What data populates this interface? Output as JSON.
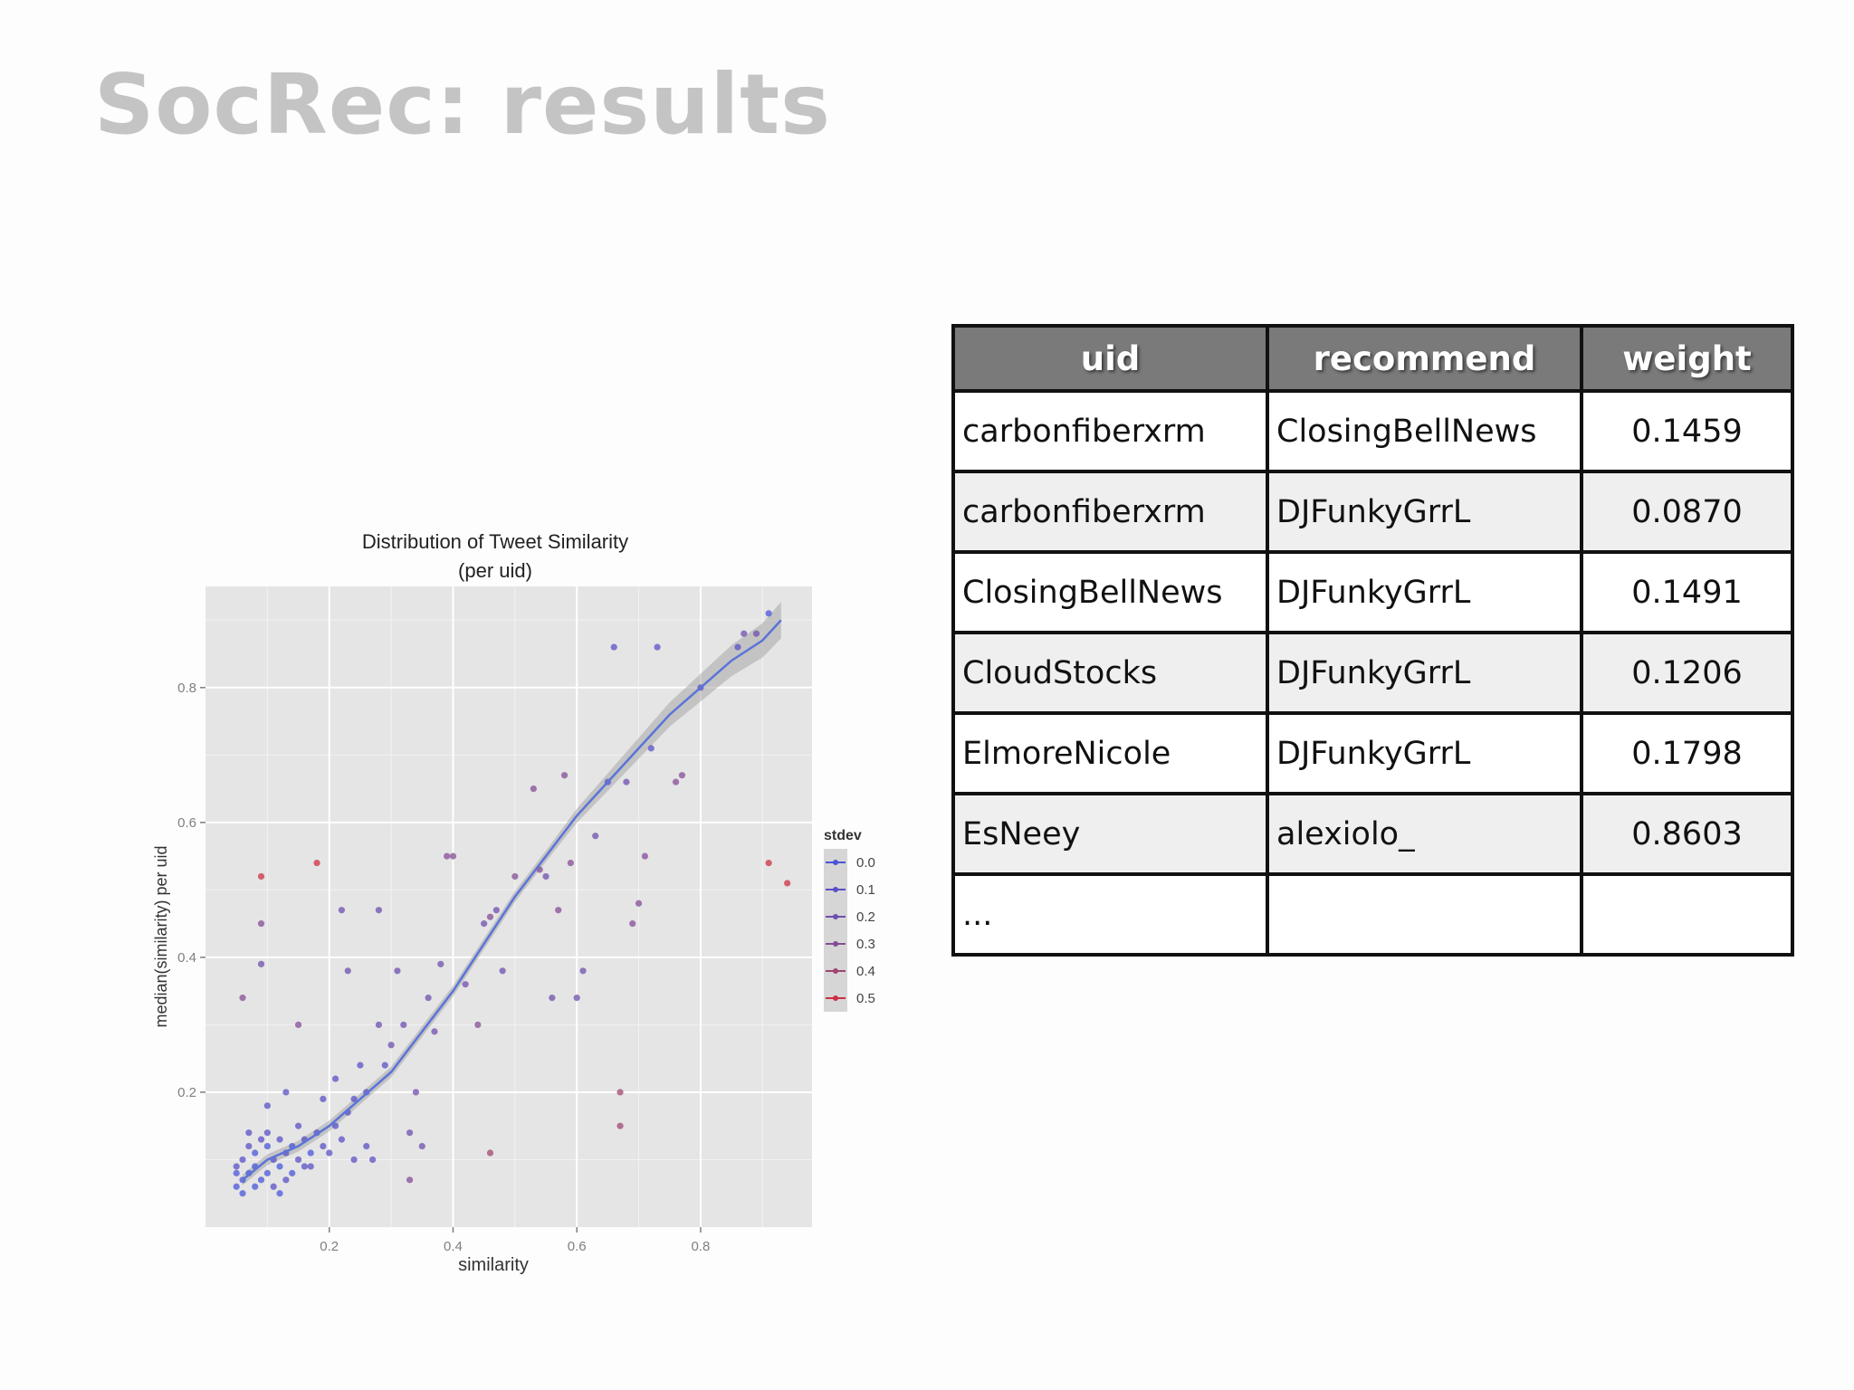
{
  "slide": {
    "title": "SocRec: results"
  },
  "table": {
    "headers": [
      "uid",
      "recommend",
      "weight"
    ],
    "rows": [
      [
        "carbonfiberxrm",
        "ClosingBellNews",
        "0.1459"
      ],
      [
        "carbonfiberxrm",
        "DJFunkyGrrL",
        "0.0870"
      ],
      [
        "ClosingBellNews",
        "DJFunkyGrrL",
        "0.1491"
      ],
      [
        "CloudStocks",
        "DJFunkyGrrL",
        "0.1206"
      ],
      [
        "ElmoreNicole",
        "DJFunkyGrrL",
        "0.1798"
      ],
      [
        "EsNeey",
        "alexiolo_",
        "0.8603"
      ],
      [
        "...",
        "",
        ""
      ]
    ]
  },
  "chart_data": {
    "type": "scatter",
    "title": "Distribution of Tweet Similarity",
    "subtitle": "(per uid)",
    "xlabel": "similarity",
    "ylabel": "median(similarity) per uid",
    "xlim": [
      0.0,
      0.98
    ],
    "ylim": [
      0.0,
      0.95
    ],
    "xticks": [
      0.2,
      0.4,
      0.6,
      0.8
    ],
    "yticks": [
      0.2,
      0.4,
      0.6,
      0.8
    ],
    "xtick_labels": [
      "0.2",
      "0.4",
      "0.6",
      "0.8"
    ],
    "ytick_labels": [
      "0.2",
      "0.4",
      "0.6",
      "0.8"
    ],
    "grid": true,
    "background_color": "#e5e5e5",
    "legend": {
      "title": "stdev",
      "position": "right",
      "entries": [
        {
          "label": "0.0",
          "color": "#4a55d8"
        },
        {
          "label": "0.1",
          "color": "#5a50c6"
        },
        {
          "label": "0.2",
          "color": "#6e4fae"
        },
        {
          "label": "0.3",
          "color": "#844c96"
        },
        {
          "label": "0.4",
          "color": "#a04570"
        },
        {
          "label": "0.5",
          "color": "#cc3040"
        }
      ]
    },
    "trend_line": {
      "color": "#5b74d8",
      "band_color": "#a8a8a8",
      "x": [
        0.06,
        0.1,
        0.15,
        0.2,
        0.25,
        0.3,
        0.35,
        0.4,
        0.45,
        0.5,
        0.55,
        0.6,
        0.65,
        0.7,
        0.75,
        0.8,
        0.85,
        0.9,
        0.93
      ],
      "y": [
        0.07,
        0.1,
        0.12,
        0.15,
        0.19,
        0.23,
        0.29,
        0.35,
        0.42,
        0.49,
        0.55,
        0.61,
        0.66,
        0.71,
        0.76,
        0.8,
        0.84,
        0.87,
        0.9
      ]
    },
    "points": [
      {
        "x": 0.05,
        "y": 0.06,
        "s": 0.0
      },
      {
        "x": 0.06,
        "y": 0.07,
        "s": 0.0
      },
      {
        "x": 0.07,
        "y": 0.08,
        "s": 0.0
      },
      {
        "x": 0.05,
        "y": 0.09,
        "s": 0.1
      },
      {
        "x": 0.08,
        "y": 0.06,
        "s": 0.0
      },
      {
        "x": 0.09,
        "y": 0.07,
        "s": 0.0
      },
      {
        "x": 0.06,
        "y": 0.1,
        "s": 0.1
      },
      {
        "x": 0.1,
        "y": 0.08,
        "s": 0.0
      },
      {
        "x": 0.11,
        "y": 0.1,
        "s": 0.1
      },
      {
        "x": 0.07,
        "y": 0.12,
        "s": 0.1
      },
      {
        "x": 0.12,
        "y": 0.09,
        "s": 0.0
      },
      {
        "x": 0.13,
        "y": 0.11,
        "s": 0.1
      },
      {
        "x": 0.08,
        "y": 0.11,
        "s": 0.0
      },
      {
        "x": 0.14,
        "y": 0.12,
        "s": 0.0
      },
      {
        "x": 0.15,
        "y": 0.1,
        "s": 0.1
      },
      {
        "x": 0.09,
        "y": 0.13,
        "s": 0.1
      },
      {
        "x": 0.16,
        "y": 0.13,
        "s": 0.1
      },
      {
        "x": 0.17,
        "y": 0.11,
        "s": 0.0
      },
      {
        "x": 0.1,
        "y": 0.14,
        "s": 0.1
      },
      {
        "x": 0.18,
        "y": 0.14,
        "s": 0.1
      },
      {
        "x": 0.19,
        "y": 0.12,
        "s": 0.1
      },
      {
        "x": 0.06,
        "y": 0.05,
        "s": 0.0
      },
      {
        "x": 0.08,
        "y": 0.09,
        "s": 0.0
      },
      {
        "x": 0.12,
        "y": 0.13,
        "s": 0.1
      },
      {
        "x": 0.13,
        "y": 0.07,
        "s": 0.1
      },
      {
        "x": 0.15,
        "y": 0.15,
        "s": 0.1
      },
      {
        "x": 0.11,
        "y": 0.06,
        "s": 0.1
      },
      {
        "x": 0.07,
        "y": 0.14,
        "s": 0.1
      },
      {
        "x": 0.16,
        "y": 0.09,
        "s": 0.1
      },
      {
        "x": 0.2,
        "y": 0.11,
        "s": 0.1
      },
      {
        "x": 0.21,
        "y": 0.15,
        "s": 0.1
      },
      {
        "x": 0.22,
        "y": 0.13,
        "s": 0.1
      },
      {
        "x": 0.23,
        "y": 0.17,
        "s": 0.1
      },
      {
        "x": 0.24,
        "y": 0.19,
        "s": 0.1
      },
      {
        "x": 0.25,
        "y": 0.24,
        "s": 0.1
      },
      {
        "x": 0.26,
        "y": 0.2,
        "s": 0.1
      },
      {
        "x": 0.27,
        "y": 0.1,
        "s": 0.1
      },
      {
        "x": 0.28,
        "y": 0.3,
        "s": 0.2
      },
      {
        "x": 0.29,
        "y": 0.24,
        "s": 0.1
      },
      {
        "x": 0.3,
        "y": 0.27,
        "s": 0.2
      },
      {
        "x": 0.31,
        "y": 0.38,
        "s": 0.2
      },
      {
        "x": 0.32,
        "y": 0.3,
        "s": 0.2
      },
      {
        "x": 0.33,
        "y": 0.14,
        "s": 0.2
      },
      {
        "x": 0.34,
        "y": 0.2,
        "s": 0.2
      },
      {
        "x": 0.35,
        "y": 0.12,
        "s": 0.2
      },
      {
        "x": 0.36,
        "y": 0.34,
        "s": 0.2
      },
      {
        "x": 0.37,
        "y": 0.29,
        "s": 0.2
      },
      {
        "x": 0.38,
        "y": 0.39,
        "s": 0.2
      },
      {
        "x": 0.39,
        "y": 0.55,
        "s": 0.3
      },
      {
        "x": 0.4,
        "y": 0.55,
        "s": 0.3
      },
      {
        "x": 0.42,
        "y": 0.36,
        "s": 0.2
      },
      {
        "x": 0.44,
        "y": 0.3,
        "s": 0.3
      },
      {
        "x": 0.45,
        "y": 0.45,
        "s": 0.2
      },
      {
        "x": 0.46,
        "y": 0.46,
        "s": 0.3
      },
      {
        "x": 0.47,
        "y": 0.47,
        "s": 0.2
      },
      {
        "x": 0.48,
        "y": 0.38,
        "s": 0.2
      },
      {
        "x": 0.5,
        "y": 0.52,
        "s": 0.3
      },
      {
        "x": 0.53,
        "y": 0.65,
        "s": 0.3
      },
      {
        "x": 0.54,
        "y": 0.53,
        "s": 0.3
      },
      {
        "x": 0.55,
        "y": 0.52,
        "s": 0.2
      },
      {
        "x": 0.56,
        "y": 0.34,
        "s": 0.2
      },
      {
        "x": 0.57,
        "y": 0.47,
        "s": 0.3
      },
      {
        "x": 0.58,
        "y": 0.67,
        "s": 0.3
      },
      {
        "x": 0.59,
        "y": 0.54,
        "s": 0.3
      },
      {
        "x": 0.6,
        "y": 0.34,
        "s": 0.2
      },
      {
        "x": 0.61,
        "y": 0.38,
        "s": 0.2
      },
      {
        "x": 0.63,
        "y": 0.58,
        "s": 0.2
      },
      {
        "x": 0.65,
        "y": 0.66,
        "s": 0.1
      },
      {
        "x": 0.66,
        "y": 0.86,
        "s": 0.1
      },
      {
        "x": 0.67,
        "y": 0.2,
        "s": 0.4
      },
      {
        "x": 0.67,
        "y": 0.15,
        "s": 0.4
      },
      {
        "x": 0.68,
        "y": 0.66,
        "s": 0.2
      },
      {
        "x": 0.69,
        "y": 0.45,
        "s": 0.3
      },
      {
        "x": 0.7,
        "y": 0.48,
        "s": 0.3
      },
      {
        "x": 0.71,
        "y": 0.55,
        "s": 0.3
      },
      {
        "x": 0.72,
        "y": 0.71,
        "s": 0.1
      },
      {
        "x": 0.73,
        "y": 0.86,
        "s": 0.1
      },
      {
        "x": 0.76,
        "y": 0.66,
        "s": 0.3
      },
      {
        "x": 0.77,
        "y": 0.67,
        "s": 0.3
      },
      {
        "x": 0.8,
        "y": 0.8,
        "s": 0.1
      },
      {
        "x": 0.86,
        "y": 0.86,
        "s": 0.1
      },
      {
        "x": 0.87,
        "y": 0.88,
        "s": 0.2
      },
      {
        "x": 0.89,
        "y": 0.88,
        "s": 0.2
      },
      {
        "x": 0.91,
        "y": 0.91,
        "s": 0.0
      },
      {
        "x": 0.91,
        "y": 0.54,
        "s": 0.5
      },
      {
        "x": 0.94,
        "y": 0.51,
        "s": 0.5
      },
      {
        "x": 0.09,
        "y": 0.52,
        "s": 0.5
      },
      {
        "x": 0.18,
        "y": 0.54,
        "s": 0.5
      },
      {
        "x": 0.09,
        "y": 0.45,
        "s": 0.3
      },
      {
        "x": 0.46,
        "y": 0.11,
        "s": 0.4
      },
      {
        "x": 0.06,
        "y": 0.34,
        "s": 0.3
      },
      {
        "x": 0.09,
        "y": 0.39,
        "s": 0.2
      },
      {
        "x": 0.15,
        "y": 0.3,
        "s": 0.3
      },
      {
        "x": 0.22,
        "y": 0.47,
        "s": 0.2
      },
      {
        "x": 0.28,
        "y": 0.47,
        "s": 0.2
      },
      {
        "x": 0.23,
        "y": 0.38,
        "s": 0.2
      },
      {
        "x": 0.33,
        "y": 0.07,
        "s": 0.3
      },
      {
        "x": 0.21,
        "y": 0.22,
        "s": 0.1
      },
      {
        "x": 0.19,
        "y": 0.19,
        "s": 0.1
      },
      {
        "x": 0.1,
        "y": 0.18,
        "s": 0.1
      },
      {
        "x": 0.13,
        "y": 0.2,
        "s": 0.1
      },
      {
        "x": 0.17,
        "y": 0.09,
        "s": 0.1
      },
      {
        "x": 0.24,
        "y": 0.1,
        "s": 0.1
      },
      {
        "x": 0.26,
        "y": 0.12,
        "s": 0.1
      },
      {
        "x": 0.12,
        "y": 0.05,
        "s": 0.0
      },
      {
        "x": 0.14,
        "y": 0.08,
        "s": 0.0
      },
      {
        "x": 0.05,
        "y": 0.08,
        "s": 0.0
      },
      {
        "x": 0.1,
        "y": 0.12,
        "s": 0.0
      }
    ]
  }
}
